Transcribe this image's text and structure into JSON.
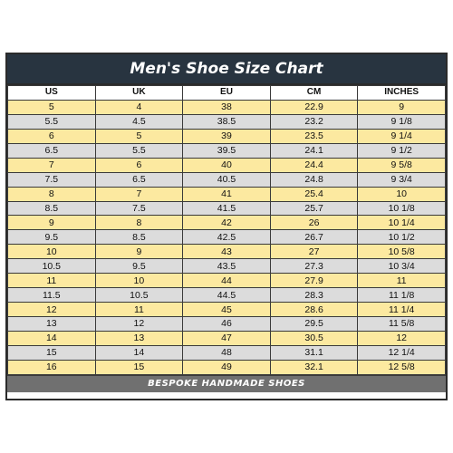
{
  "chart": {
    "title": "Men's Shoe Size Chart",
    "footer": "BESPOKE HANDMADE SHOES",
    "colors": {
      "title_bg": "#283440",
      "row_yellow": "#fce9a0",
      "row_grey": "#dcdcdc",
      "footer_bg": "#707070"
    }
  },
  "table": {
    "headers": [
      "US",
      "UK",
      "EU",
      "CM",
      "INCHES"
    ],
    "rows": [
      [
        "5",
        "4",
        "38",
        "22.9",
        "9"
      ],
      [
        "5.5",
        "4.5",
        "38.5",
        "23.2",
        "9 1/8"
      ],
      [
        "6",
        "5",
        "39",
        "23.5",
        "9 1/4"
      ],
      [
        "6.5",
        "5.5",
        "39.5",
        "24.1",
        "9 1/2"
      ],
      [
        "7",
        "6",
        "40",
        "24.4",
        "9 5/8"
      ],
      [
        "7.5",
        "6.5",
        "40.5",
        "24.8",
        "9 3/4"
      ],
      [
        "8",
        "7",
        "41",
        "25.4",
        "10"
      ],
      [
        "8.5",
        "7.5",
        "41.5",
        "25.7",
        "10 1/8"
      ],
      [
        "9",
        "8",
        "42",
        "26",
        "10 1/4"
      ],
      [
        "9.5",
        "8.5",
        "42.5",
        "26.7",
        "10 1/2"
      ],
      [
        "10",
        "9",
        "43",
        "27",
        "10 5/8"
      ],
      [
        "10.5",
        "9.5",
        "43.5",
        "27.3",
        "10 3/4"
      ],
      [
        "11",
        "10",
        "44",
        "27.9",
        "11"
      ],
      [
        "11.5",
        "10.5",
        "44.5",
        "28.3",
        "11 1/8"
      ],
      [
        "12",
        "11",
        "45",
        "28.6",
        "11 1/4"
      ],
      [
        "13",
        "12",
        "46",
        "29.5",
        "11 5/8"
      ],
      [
        "14",
        "13",
        "47",
        "30.5",
        "12"
      ],
      [
        "15",
        "14",
        "48",
        "31.1",
        "12 1/4"
      ],
      [
        "16",
        "15",
        "49",
        "32.1",
        "12 5/8"
      ]
    ]
  }
}
